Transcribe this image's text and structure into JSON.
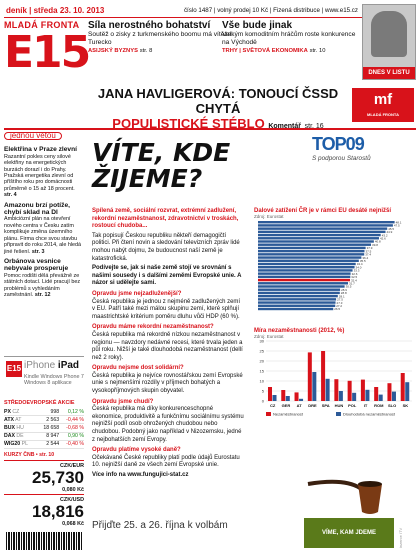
{
  "masthead": {
    "left": "deník | středa 23. 10. 2013",
    "right": "číslo 1487 | volný prodej 10 Kč | Fizená distribuce | www.e15.cz",
    "brand_top": "MLADÁ FRONTA",
    "brand_big": "E15"
  },
  "teasers": [
    {
      "title": "Síla nerostného bohatství",
      "text": "Soutěž o zisky z turkmenského boomu má vítěze: Turecko",
      "src": "ASIJSKÝ BYZNYS",
      "page": "str. 8"
    },
    {
      "title": "Vše bude jinak",
      "text": "Velkým komoditním hráčům roste konkurence na Východě",
      "src": "TRHY | SVĚTOVÁ EKONOMIKA",
      "page": "str. 10"
    }
  ],
  "cover": {
    "label": "DNES V LISTU"
  },
  "headline": {
    "lead": "JANA HAVLIGEROVÁ: TONOUCÍ ČSSD CHYTÁ",
    "lead2": "POPULISTICKÉ STÉBLO",
    "kicker": "Komentář",
    "page": "str. 16",
    "logo": "mf",
    "logo_sub": "MLADÁ FRONTA"
  },
  "sidebar": {
    "badge": "jednou větou",
    "items": [
      {
        "title": "Elektřina v Praze zlevní",
        "text": "Razantní pokles ceny silové elektřiny na energetických burzách dorazí i do Prahy. Pražská energetika zlevní od příštího roku pro domácnosti průměrně o 15 až 18 procent.",
        "page": "str. 4"
      },
      {
        "title": "Amazonu brzí potíže, chybí sklad na Dl",
        "text": "Ambiciózní plán na otevření nového centra v Česku zatím komplikuje změna územního plánu. Firma chce svou stavbu připravit do roku 2014, ale hledá jiné řešení.",
        "page": "str. 3"
      },
      {
        "title": "Orbánova vesnice nebyvale prosperuje",
        "text": "Pomoc rodišti dělá převážně ze státních dotací. Lidé pracují bez problémů s vyhledáním zaměstnání.",
        "page": "str. 12"
      }
    ]
  },
  "ipad": {
    "logo": "E15",
    "line1_a": "iPhone",
    "line1_b": "iPad",
    "line2": "Kindle Windows Phone 7",
    "line3": "Windows 8 aplikace"
  },
  "market": {
    "title": "STŘEDOEVROPSKÉ AKCIE",
    "rows": [
      {
        "name": "PX",
        "ch": "CZ",
        "val": "998",
        "pct": "0,12 %",
        "dir": "pos"
      },
      {
        "name": "ATX",
        "ch": "AT",
        "val": "2 563",
        "pct": "-0,44 %",
        "dir": "neg"
      },
      {
        "name": "BUX",
        "ch": "HU",
        "val": "18 658",
        "pct": "-0,68 %",
        "dir": "neg"
      },
      {
        "name": "DAX",
        "ch": "DE",
        "val": "8 947",
        "pct": "0,90 %",
        "dir": "pos"
      },
      {
        "name": "WIG20",
        "ch": "PL",
        "val": "2 544",
        "pct": "-0,40 %",
        "dir": "neg"
      }
    ]
  },
  "fx_note": "KURZY ČNB • str. 10",
  "fx": [
    {
      "label": "CZK/EUR",
      "value": "25,730",
      "change": "0,080 Kč"
    },
    {
      "label": "CZK/USD",
      "value": "18,816",
      "change": "0,068 Kč"
    }
  ],
  "top09": {
    "name": "TOP09",
    "sub": "S podporou Starostů"
  },
  "main": {
    "question": "VÍTE, KDE ŽIJEME?",
    "lead": "Spílená země, sociální rozvrat, extrémní zadlužení, rekordní nezaměstnanost, zdravotnictví v troskách, rostoucí chudoba...",
    "lead2": "Tak popisují Českou republiku někteří demagogičtí politici. Při čtení novin a sledování televizních zpráv lidé mohou nabýt dojmu, že budoucnost naší země je katastrofická.",
    "intro": "Podívejte se, jak si naše země stojí ve srovnání s našimi sousedy i s dalšími zeměmi Evropské unie. A názor si udělejte sami.",
    "sections": [
      {
        "q": "Opravdu jsme nejzadluženější?",
        "a": "Česká republika je jednou z nejméně zadlužených zemí v EU. Patří také mezi málou skupinu zemí, které splňují maastrichtské kritérium poměru dluhu vůči HDP (60 %)."
      },
      {
        "q": "Opravdu máme rekordní nezaměstnanost?",
        "a": "Česká republika má rekordně nízkou nezaměstnanost v regionu — navzdory nedávné recesi, které trvala jeden a půl roku. Nižší je také dlouhodobá nezaměstnanost (dellí než 2 roky)."
      },
      {
        "q": "Opravdu nejsme dost solidární?",
        "a": "Česká republika je nejvíce rovnostářskou zemí Evropské unie s nejmenšími rozdíly v příjmech bohatých a vysokopříjmových skupin obyvatel."
      },
      {
        "q": "Opravdu jsme chudí?",
        "a": "Česká republika má díky konkurenceschopné ekonomice, produktivitě a funkčnímu sociálnímu systému nejnižší podíl osob ohrožených chudobou nebo chudobou. Podobný jako například v Nizozemsku, jedné z nejbohatších zemí Evropy."
      },
      {
        "q": "Opravdu platíme vysoké daně?",
        "a": "Očekávané České republiky platí podle údajů Eurostatu 10. nejnižší daně ze všech zemí Evropské unie."
      }
    ],
    "www": "Více info na www.fungujici-stat.cz",
    "footer": "Přijďte 25. a 26. října k volbám",
    "promo": "VÍME, KAM JDEME",
    "edge": "inzerce ITV"
  },
  "chart_data": [
    {
      "type": "bar",
      "title": "Dalové zatížení ČR je v rámci EU desáté nejnižší",
      "source": "Zdroj: Eurostat",
      "categories": [
        "",
        "",
        "",
        "",
        "",
        "",
        "",
        "",
        "",
        "",
        "",
        "",
        "",
        "",
        "",
        "",
        "",
        "",
        "",
        "",
        "",
        "",
        "",
        "",
        "",
        "",
        "",
        ""
      ],
      "values": [
        48.1,
        47.5,
        45.5,
        44.9,
        43.2,
        42.6,
        40.8,
        39.8,
        37.9,
        37.5,
        37.4,
        36.4,
        35.5,
        34.4,
        34.0,
        33.3,
        32.6,
        32.5,
        32.4,
        31.7,
        30.5,
        28.9,
        28.8,
        28.1,
        27.5,
        27.3,
        27.2,
        26.5
      ],
      "highlight_index": 18,
      "xlim": [
        0,
        50
      ]
    },
    {
      "type": "bar",
      "title": "Míra nezaměstnanosti (2012, %)",
      "source": "Zdroj: Eurostat",
      "categories": [
        "CZ",
        "GER",
        "AT",
        "DRE",
        "SPA",
        "HUN",
        "POL",
        "IT",
        "ROM",
        "SLO",
        "SK"
      ],
      "series": [
        {
          "name": "Nezaměstnanost",
          "values": [
            7.0,
            5.5,
            4.3,
            24.3,
            25.0,
            10.9,
            10.1,
            10.7,
            7.0,
            8.9,
            14.0
          ]
        },
        {
          "name": "Dlouhodobá nezaměstnanost",
          "values": [
            3.0,
            2.5,
            1.1,
            14.5,
            11.1,
            5.0,
            4.1,
            5.6,
            3.2,
            4.7,
            9.4
          ]
        }
      ],
      "ylim": [
        0,
        30
      ],
      "yticks": [
        "0",
        "5",
        "10",
        "15",
        "20",
        "25",
        "30"
      ]
    }
  ]
}
